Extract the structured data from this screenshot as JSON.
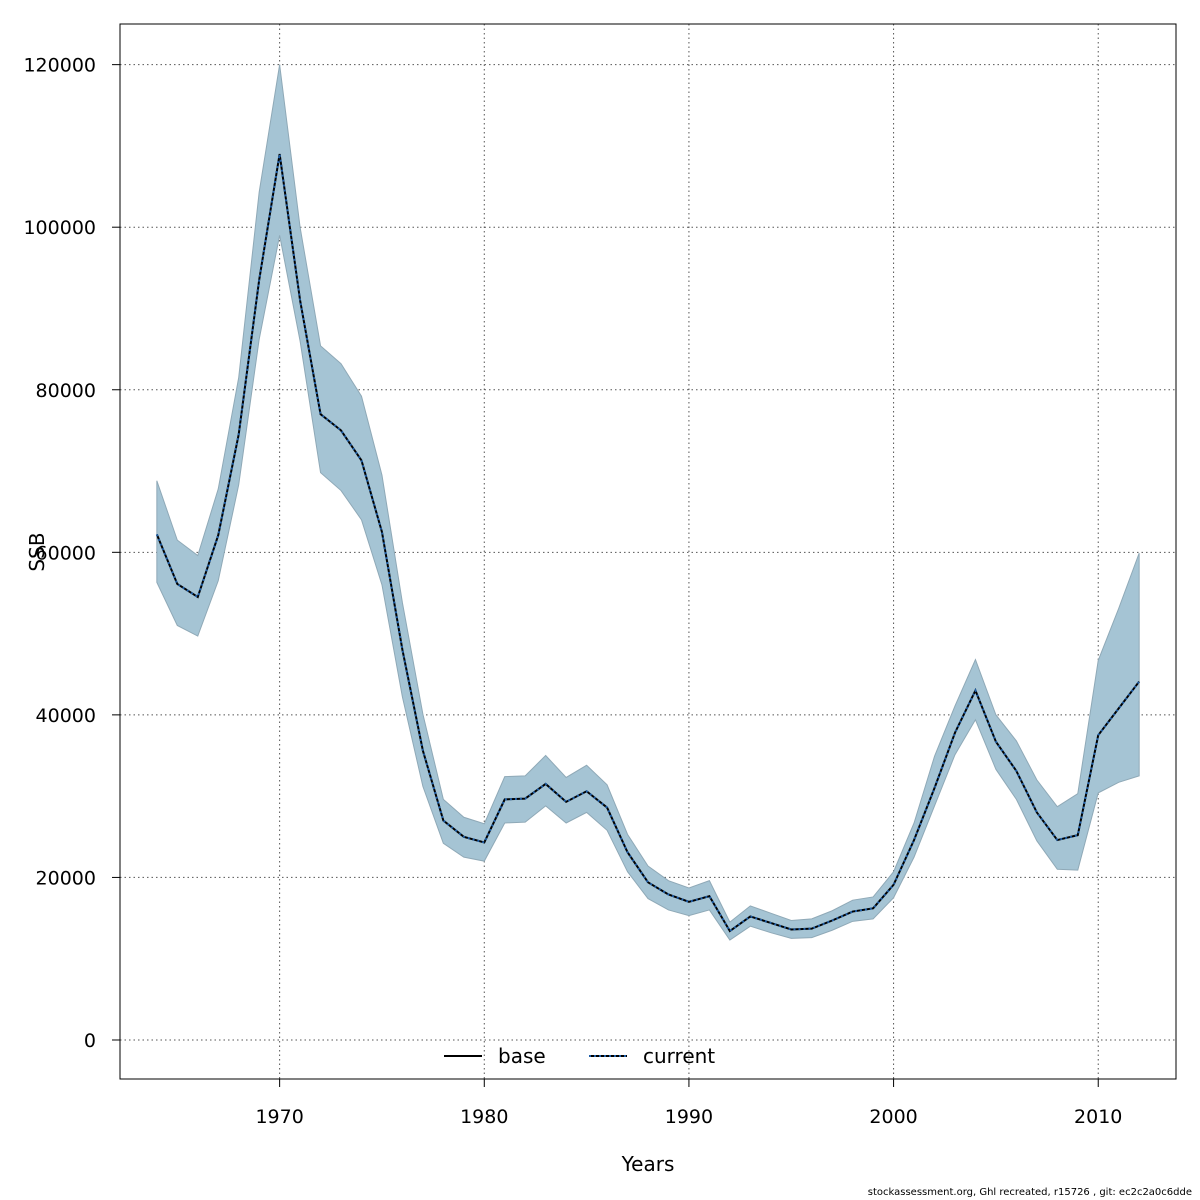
{
  "footer_text": "stockassessment.org, Ghl  recreated, r15726 , git: ec2c2a0c6dde",
  "colors": {
    "band": "#a5c4d4",
    "band_stroke": "#8fa9b7",
    "line": "#000000",
    "current_dot": "#1f5fa8",
    "grid": "#555555"
  },
  "chart_data": {
    "type": "line",
    "title": "",
    "xlabel": "Years",
    "ylabel": "SSB",
    "xlim": [
      1962.2,
      2013.8
    ],
    "ylim": [
      -4800,
      125000
    ],
    "x_ticks": [
      1970,
      1980,
      1990,
      2000,
      2010
    ],
    "x_tick_labels": [
      "1970",
      "1980",
      "1990",
      "2000",
      "2010"
    ],
    "y_ticks": [
      0,
      20000,
      40000,
      60000,
      80000,
      100000,
      120000
    ],
    "y_tick_labels": [
      "0",
      "20000",
      "40000",
      "60000",
      "80000",
      "100000",
      "120000"
    ],
    "grid": true,
    "legend_position": "bottom",
    "legend": [
      {
        "label": "base",
        "style": "solid"
      },
      {
        "label": "current",
        "style": "dotted"
      }
    ],
    "x": [
      1964,
      1965,
      1966,
      1967,
      1968,
      1969,
      1970,
      1971,
      1972,
      1973,
      1974,
      1975,
      1976,
      1977,
      1978,
      1979,
      1980,
      1981,
      1982,
      1983,
      1984,
      1985,
      1986,
      1987,
      1988,
      1989,
      1990,
      1991,
      1992,
      1993,
      1994,
      1995,
      1996,
      1997,
      1998,
      1999,
      2000,
      2001,
      2002,
      2003,
      2004,
      2005,
      2006,
      2007,
      2008,
      2009,
      2010,
      2011,
      2012
    ],
    "series": [
      {
        "name": "current",
        "values": [
          62200,
          56100,
          54500,
          62100,
          74500,
          93500,
          109000,
          91000,
          77000,
          75000,
          71300,
          62500,
          48000,
          35600,
          27000,
          25000,
          24300,
          29600,
          29700,
          31500,
          29300,
          30600,
          28600,
          23100,
          19400,
          17900,
          17000,
          17700,
          13400,
          15200,
          14400,
          13600,
          13700,
          14700,
          15800,
          16200,
          19100,
          24600,
          31000,
          37800,
          43000,
          36700,
          33100,
          28000,
          24600,
          25200,
          37500,
          40800,
          44100
        ],
        "lower": [
          56300,
          51000,
          49700,
          56500,
          68300,
          86200,
          99000,
          86000,
          69800,
          67600,
          64000,
          56000,
          42200,
          31200,
          24200,
          22500,
          22000,
          26700,
          26800,
          28800,
          26700,
          28000,
          25800,
          20700,
          17400,
          16000,
          15300,
          16000,
          12300,
          14000,
          13200,
          12500,
          12600,
          13500,
          14600,
          14900,
          17500,
          22500,
          28800,
          35100,
          39400,
          33300,
          29600,
          24500,
          21000,
          20900,
          30400,
          31700,
          32500
        ],
        "upper": [
          68800,
          61500,
          59600,
          67800,
          81500,
          104300,
          120000,
          100000,
          85400,
          83200,
          79200,
          69500,
          53800,
          40100,
          29600,
          27400,
          26600,
          32400,
          32500,
          35000,
          32300,
          33800,
          31400,
          25300,
          21400,
          19600,
          18700,
          19600,
          14500,
          16500,
          15600,
          14700,
          14900,
          15900,
          17200,
          17600,
          20700,
          26700,
          34900,
          41100,
          46800,
          40000,
          36800,
          32000,
          28700,
          30300,
          46700,
          53100,
          59900
        ]
      }
    ]
  }
}
